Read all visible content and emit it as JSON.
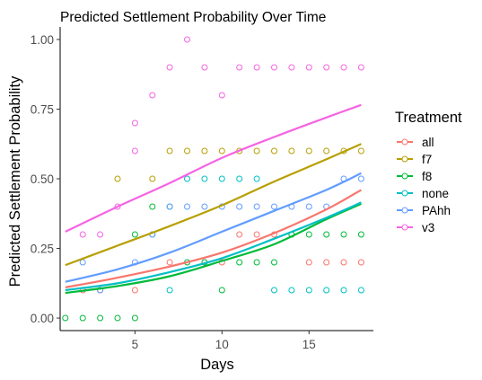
{
  "chart_data": {
    "type": "scatter",
    "title": "Predicted Settlement Probability Over Time",
    "xlabel": "Days",
    "ylabel": "Predicted Settlement Probability",
    "xlim": [
      0.7,
      18.7
    ],
    "ylim": [
      -0.045,
      1.045
    ],
    "x_ticks": [
      5,
      10,
      15
    ],
    "y_ticks": [
      0.0,
      0.25,
      0.5,
      0.75,
      1.0
    ],
    "x_tick_labels": [
      "5",
      "10",
      "15"
    ],
    "y_tick_labels": [
      "0.00",
      "0.25",
      "0.50",
      "0.75",
      "1.00"
    ],
    "grid": false,
    "legend": {
      "title": "Treatment",
      "position": "right"
    },
    "series": [
      {
        "name": "all",
        "color": "#F8766D",
        "points": [
          [
            2,
            0.1
          ],
          [
            3,
            0.1
          ],
          [
            5,
            0.1
          ],
          [
            7,
            0.2
          ],
          [
            9,
            0.2
          ],
          [
            10,
            0.2
          ],
          [
            11,
            0.3
          ],
          [
            12,
            0.3
          ],
          [
            13,
            0.3
          ],
          [
            14,
            0.3
          ],
          [
            15,
            0.2
          ],
          [
            16,
            0.2
          ],
          [
            17,
            0.2
          ],
          [
            18,
            0.2
          ]
        ],
        "fit": [
          [
            1,
            0.11
          ],
          [
            4,
            0.145
          ],
          [
            7,
            0.185
          ],
          [
            10,
            0.235
          ],
          [
            13,
            0.305
          ],
          [
            16,
            0.39
          ],
          [
            18,
            0.46
          ]
        ]
      },
      {
        "name": "f7",
        "color": "#B79F00",
        "points": [
          [
            4,
            0.5
          ],
          [
            6,
            0.5
          ],
          [
            7,
            0.6
          ],
          [
            8,
            0.6
          ],
          [
            9,
            0.6
          ],
          [
            10,
            0.6
          ],
          [
            11,
            0.6
          ],
          [
            12,
            0.6
          ],
          [
            13,
            0.6
          ],
          [
            14,
            0.6
          ],
          [
            15,
            0.6
          ],
          [
            16,
            0.6
          ],
          [
            17,
            0.6
          ],
          [
            18,
            0.6
          ]
        ],
        "fit": [
          [
            1,
            0.19
          ],
          [
            4,
            0.26
          ],
          [
            7,
            0.33
          ],
          [
            10,
            0.405
          ],
          [
            13,
            0.49
          ],
          [
            16,
            0.57
          ],
          [
            18,
            0.625
          ]
        ]
      },
      {
        "name": "f8",
        "color": "#00BA38",
        "points": [
          [
            1,
            0
          ],
          [
            2,
            0
          ],
          [
            3,
            0
          ],
          [
            4,
            0
          ],
          [
            5,
            0
          ],
          [
            5,
            0.3
          ],
          [
            6,
            0.4
          ],
          [
            7,
            0.4
          ],
          [
            8,
            0.2
          ],
          [
            9,
            0.2
          ],
          [
            10,
            0.1
          ],
          [
            11,
            0.2
          ],
          [
            12,
            0.2
          ],
          [
            13,
            0.2
          ],
          [
            14,
            0.3
          ],
          [
            15,
            0.3
          ],
          [
            16,
            0.3
          ],
          [
            17,
            0.3
          ],
          [
            18,
            0.3
          ]
        ],
        "fit": [
          [
            1,
            0.09
          ],
          [
            4,
            0.115
          ],
          [
            7,
            0.15
          ],
          [
            10,
            0.205
          ],
          [
            13,
            0.265
          ],
          [
            16,
            0.355
          ],
          [
            18,
            0.41
          ]
        ]
      },
      {
        "name": "none",
        "color": "#00BFC4",
        "points": [
          [
            6,
            0.3
          ],
          [
            7,
            0.1
          ],
          [
            8,
            0.5
          ],
          [
            9,
            0.5
          ],
          [
            10,
            0.5
          ],
          [
            11,
            0.5
          ],
          [
            12,
            0.5
          ],
          [
            13,
            0.1
          ],
          [
            14,
            0.1
          ],
          [
            15,
            0.1
          ],
          [
            16,
            0.1
          ],
          [
            17,
            0.1
          ],
          [
            18,
            0.1
          ]
        ],
        "fit": [
          [
            1,
            0.1
          ],
          [
            4,
            0.125
          ],
          [
            7,
            0.165
          ],
          [
            10,
            0.215
          ],
          [
            13,
            0.285
          ],
          [
            16,
            0.36
          ],
          [
            18,
            0.415
          ]
        ]
      },
      {
        "name": "PAhh",
        "color": "#619CFF",
        "points": [
          [
            2,
            0.2
          ],
          [
            3,
            0.1
          ],
          [
            5,
            0.2
          ],
          [
            6,
            0.3
          ],
          [
            7,
            0.4
          ],
          [
            8,
            0.4
          ],
          [
            9,
            0.4
          ],
          [
            10,
            0.4
          ],
          [
            11,
            0.4
          ],
          [
            12,
            0.4
          ],
          [
            13,
            0.4
          ],
          [
            14,
            0.4
          ],
          [
            15,
            0.4
          ],
          [
            16,
            0.4
          ],
          [
            17,
            0.5
          ],
          [
            18,
            0.5
          ]
        ],
        "fit": [
          [
            1,
            0.13
          ],
          [
            4,
            0.175
          ],
          [
            7,
            0.235
          ],
          [
            10,
            0.31
          ],
          [
            13,
            0.385
          ],
          [
            16,
            0.46
          ],
          [
            18,
            0.52
          ]
        ]
      },
      {
        "name": "v3",
        "color": "#F564E3",
        "points": [
          [
            2,
            0.3
          ],
          [
            3,
            0.3
          ],
          [
            4,
            0.4
          ],
          [
            5,
            0.6
          ],
          [
            5,
            0.7
          ],
          [
            6,
            0.8
          ],
          [
            7,
            0.9
          ],
          [
            8,
            1.0
          ],
          [
            9,
            0.9
          ],
          [
            10,
            0.8
          ],
          [
            11,
            0.9
          ],
          [
            12,
            0.9
          ],
          [
            13,
            0.9
          ],
          [
            14,
            0.9
          ],
          [
            15,
            0.9
          ],
          [
            16,
            0.9
          ],
          [
            17,
            0.9
          ],
          [
            18,
            0.9
          ]
        ],
        "fit": [
          [
            1,
            0.31
          ],
          [
            4,
            0.4
          ],
          [
            7,
            0.485
          ],
          [
            10,
            0.575
          ],
          [
            13,
            0.65
          ],
          [
            16,
            0.72
          ],
          [
            18,
            0.765
          ]
        ]
      }
    ]
  }
}
